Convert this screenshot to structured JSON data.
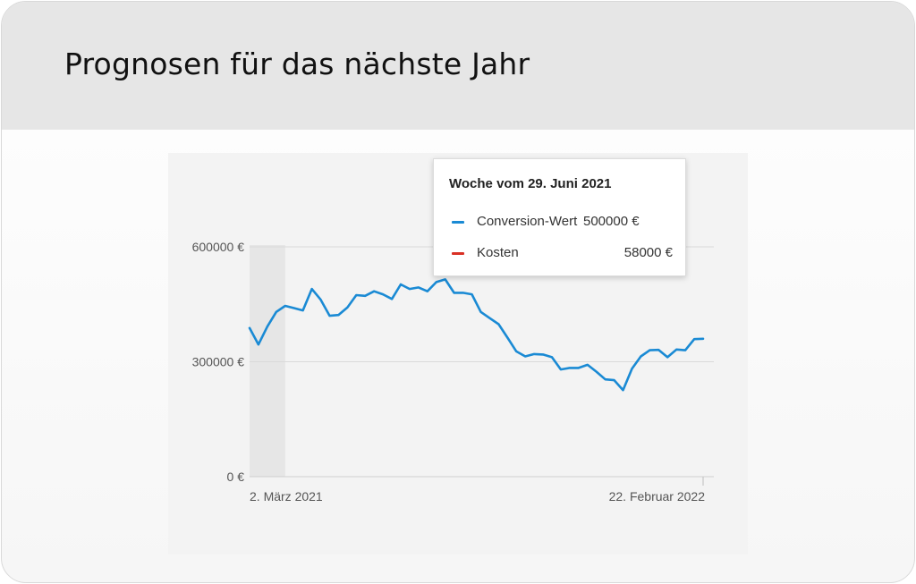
{
  "card": {
    "title": "Prognosen für das nächste Jahr"
  },
  "tooltip": {
    "title": "Woche vom 29. Juni 2021",
    "rows": [
      {
        "label": "Conversion-Wert",
        "value": "500000 €",
        "color": "#1a8ad4"
      },
      {
        "label": "Kosten",
        "value": "58000 €",
        "color": "#d93025"
      }
    ]
  },
  "chart_data": {
    "type": "line",
    "xlabel": "",
    "ylabel": "",
    "x_tick_labels": [
      "2. März 2021",
      "22. Februar 2022"
    ],
    "y_tick_labels": [
      "600000 €",
      "300000 €",
      "0 €"
    ],
    "y_ticks": [
      600000,
      300000,
      0
    ],
    "ylim": [
      0,
      600000
    ],
    "x": [
      "2021-03-02",
      "2021-03-09",
      "2021-03-16",
      "2021-03-23",
      "2021-03-30",
      "2021-04-06",
      "2021-04-13",
      "2021-04-20",
      "2021-04-27",
      "2021-05-04",
      "2021-05-11",
      "2021-05-18",
      "2021-05-25",
      "2021-06-01",
      "2021-06-08",
      "2021-06-15",
      "2021-06-22",
      "2021-06-29",
      "2021-07-06",
      "2021-07-13",
      "2021-07-20",
      "2021-07-27",
      "2021-08-03",
      "2021-08-10",
      "2021-08-17",
      "2021-08-24",
      "2021-08-31",
      "2021-09-07",
      "2021-09-14",
      "2021-09-21",
      "2021-09-28",
      "2021-10-05",
      "2021-10-12",
      "2021-10-19",
      "2021-10-26",
      "2021-11-02",
      "2021-11-09",
      "2021-11-16",
      "2021-11-23",
      "2021-11-30",
      "2021-12-07",
      "2021-12-14",
      "2021-12-21",
      "2021-12-28",
      "2022-01-04",
      "2022-01-11",
      "2022-01-18",
      "2022-01-25",
      "2022-02-01",
      "2022-02-08",
      "2022-02-15",
      "2022-02-22"
    ],
    "series": [
      {
        "color": "#1a8ad4",
        "values": [
          388000,
          345000,
          392000,
          430000,
          446000,
          440000,
          434000,
          490000,
          462000,
          420000,
          422000,
          442000,
          474000,
          472000,
          484000,
          476000,
          464000,
          502000,
          490000,
          494000,
          484000,
          508000,
          515000,
          480000,
          480000,
          476000,
          430000,
          414000,
          398000,
          363000,
          327000,
          314000,
          320000,
          319000,
          312000,
          280000,
          284000,
          284000,
          292000,
          274000,
          254000,
          252000,
          226000,
          282000,
          314000,
          330000,
          331000,
          312000,
          332000,
          330000,
          359000,
          360000
        ]
      }
    ],
    "shaded_period": {
      "start": "2021-03-02",
      "end": "2021-03-23",
      "color": "#e6e6e6"
    },
    "grid": true,
    "legend": "tooltip"
  }
}
